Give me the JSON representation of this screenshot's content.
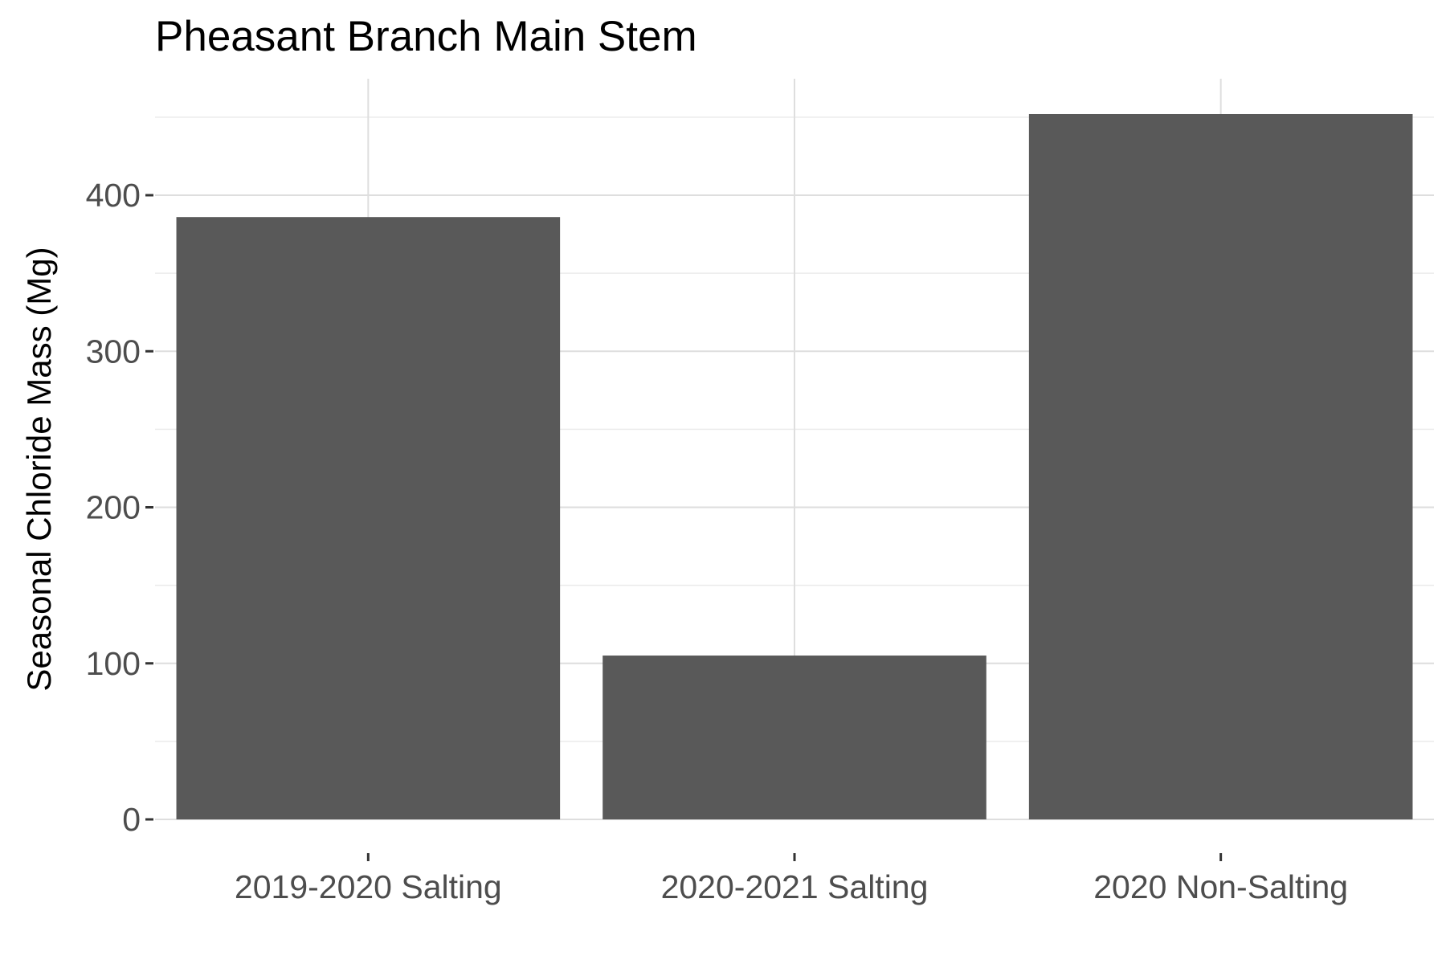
{
  "chart_data": {
    "type": "bar",
    "title": "Pheasant Branch Main Stem",
    "xlabel": "",
    "ylabel": "Seasonal Chloride Mass (Mg)",
    "categories": [
      "2019-2020 Salting",
      "2020-2021 Salting",
      "2020 Non-Salting"
    ],
    "values": [
      386,
      105,
      452
    ],
    "ylim": [
      0,
      470
    ],
    "yticks": [
      0,
      100,
      200,
      300,
      400
    ],
    "bar_color": "#595959",
    "grid": true,
    "legend": "none"
  }
}
